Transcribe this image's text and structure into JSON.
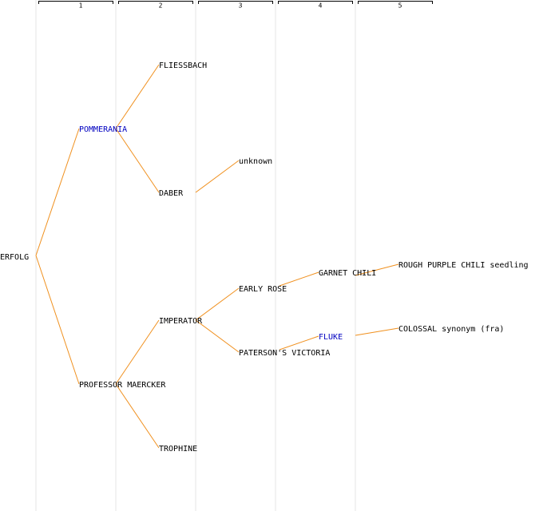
{
  "columns": [
    "1",
    "2",
    "3",
    "4",
    "5"
  ],
  "nodes": [
    {
      "label": "ERFOLG"
    },
    {
      "label": "POMMERANIA"
    },
    {
      "label": "PROFESSOR MAERCKER"
    },
    {
      "label": "FLIESSBACH"
    },
    {
      "label": "DABER"
    },
    {
      "label": "unknown"
    },
    {
      "label": "IMPERATOR"
    },
    {
      "label": "TROPHINE"
    },
    {
      "label": "EARLY ROSE"
    },
    {
      "label": "PATERSON'S VICTORIA"
    },
    {
      "label": "GARNET CHILI"
    },
    {
      "label": "FLUKE"
    },
    {
      "label": "ROUGH PURPLE CHILI seedling"
    },
    {
      "label": "COLOSSAL synonym (fra)"
    }
  ]
}
